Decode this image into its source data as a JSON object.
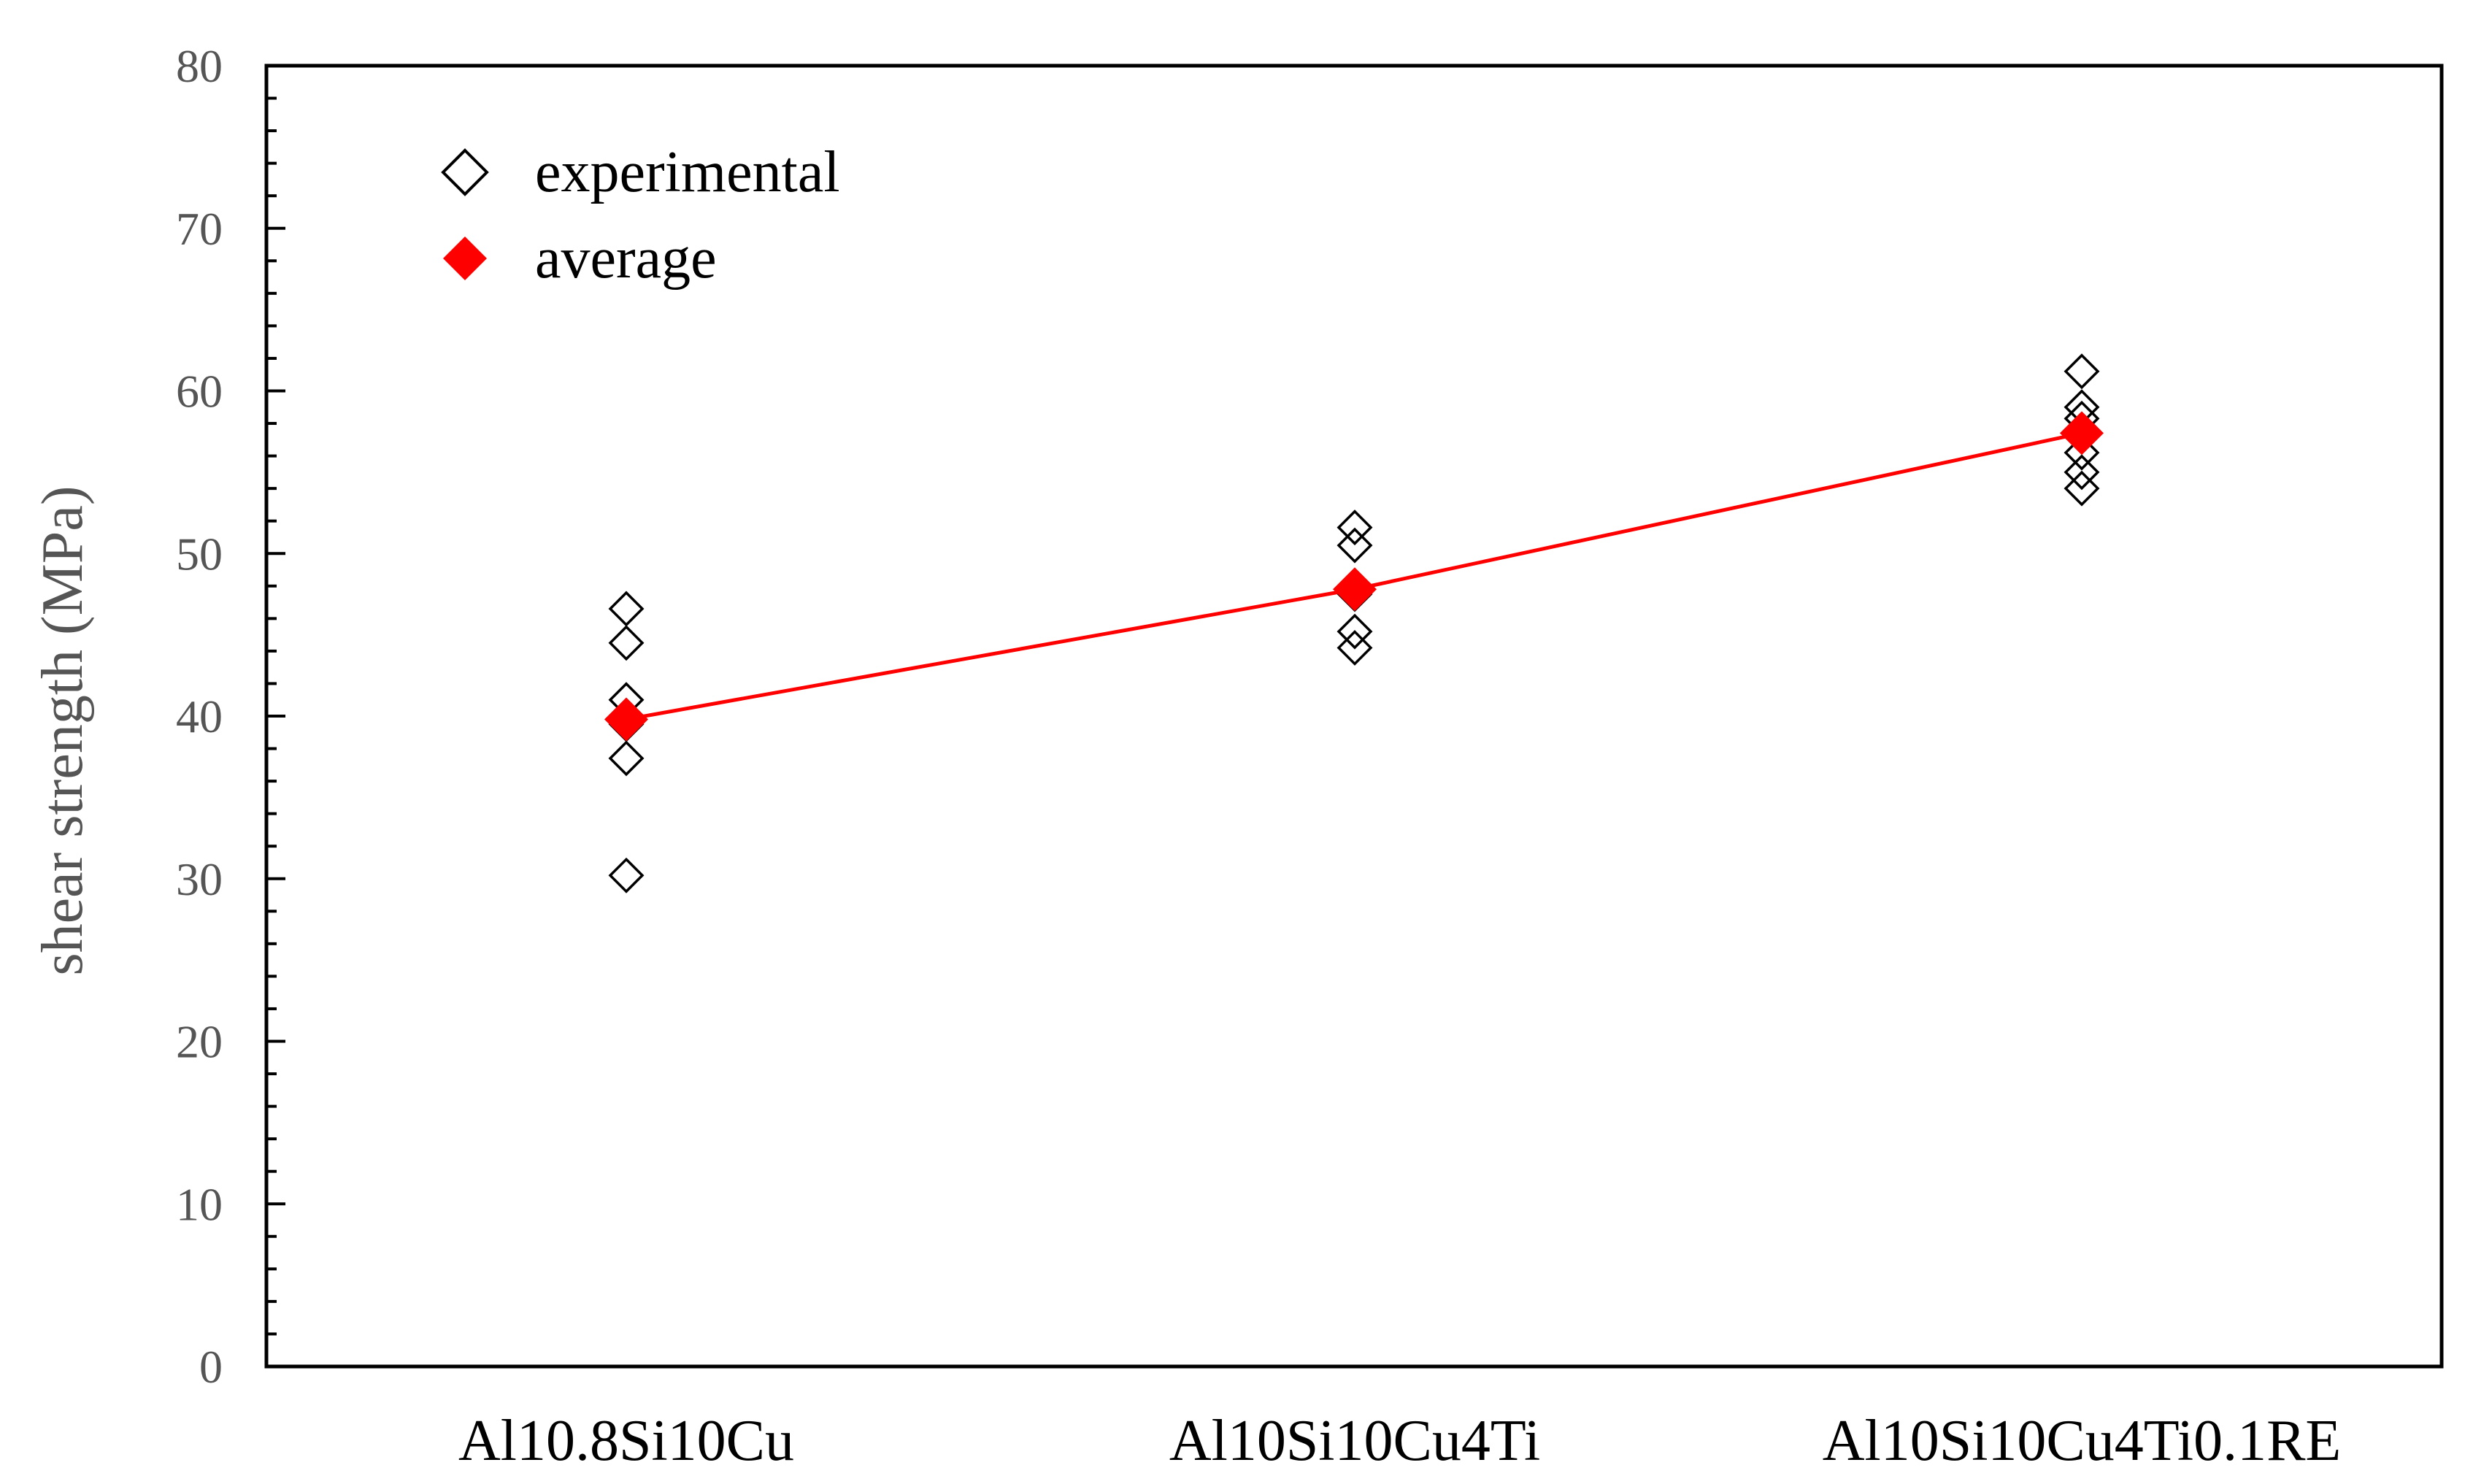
{
  "chart_data": {
    "type": "scatter",
    "title": "",
    "xlabel": "",
    "ylabel": "shear strength (MPa)",
    "ylim": [
      0,
      80
    ],
    "yticks": [
      0,
      10,
      20,
      30,
      40,
      50,
      60,
      70,
      80
    ],
    "minor_tick_step": 2,
    "grid": false,
    "categories": [
      "Al10.8Si10Cu",
      "Al10Si10Cu4Ti",
      "Al10Si10Cu4Ti0.1RE"
    ],
    "series": [
      {
        "name": "experimental",
        "marker": "open-diamond",
        "values": [
          [
            46.6,
            44.5,
            41.0,
            39.5,
            37.4,
            30.2
          ],
          [
            51.6,
            50.5,
            47.5,
            45.2,
            44.2
          ],
          [
            61.2,
            59.0,
            58.3,
            56.2,
            55.0,
            54.0
          ]
        ]
      },
      {
        "name": "average",
        "marker": "filled-diamond",
        "line": true,
        "values": [
          39.8,
          47.8,
          57.4
        ]
      }
    ],
    "legend": "top-left",
    "colors": {
      "average": "#ff0000",
      "experimental": "#000000",
      "axis": "#000000"
    }
  }
}
